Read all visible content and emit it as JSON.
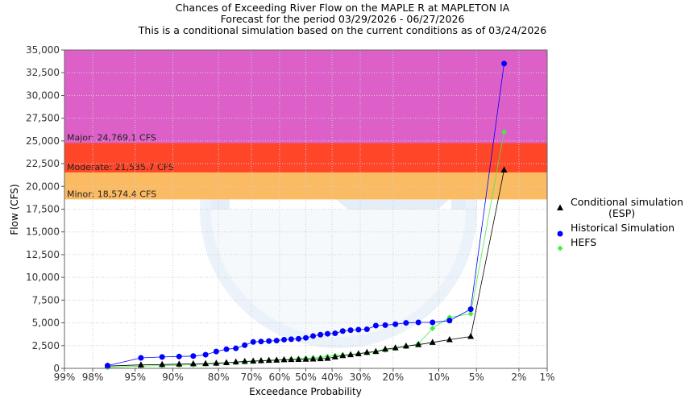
{
  "chart_data": {
    "type": "scatter",
    "title_lines": [
      "Chances of Exceeding River Flow on the MAPLE R at MAPLETON IA",
      "Forecast for the period 03/29/2026 - 06/27/2026",
      "This is a conditional simulation based on the current conditions as of 03/24/2026"
    ],
    "xlabel": "Exceedance Probability",
    "ylabel": "Flow (CFS)",
    "x_scale": "normal-probability",
    "x_ticks": [
      {
        "p": 99,
        "label": "99%"
      },
      {
        "p": 98,
        "label": "98%"
      },
      {
        "p": 95,
        "label": "95%"
      },
      {
        "p": 90,
        "label": "90%"
      },
      {
        "p": 80,
        "label": "80%"
      },
      {
        "p": 70,
        "label": "70%"
      },
      {
        "p": 60,
        "label": "60%"
      },
      {
        "p": 50,
        "label": "50%"
      },
      {
        "p": 40,
        "label": "40%"
      },
      {
        "p": 30,
        "label": "30%"
      },
      {
        "p": 20,
        "label": "20%"
      },
      {
        "p": 10,
        "label": "10%"
      },
      {
        "p": 5,
        "label": "5%"
      },
      {
        "p": 2,
        "label": "2%"
      },
      {
        "p": 1,
        "label": "1%"
      }
    ],
    "y_ticks": [
      {
        "v": 0,
        "label": "0"
      },
      {
        "v": 2500,
        "label": "2,500"
      },
      {
        "v": 5000,
        "label": "5,000"
      },
      {
        "v": 7500,
        "label": "7,500"
      },
      {
        "v": 10000,
        "label": "10,000"
      },
      {
        "v": 12500,
        "label": "12,500"
      },
      {
        "v": 15000,
        "label": "15,000"
      },
      {
        "v": 17500,
        "label": "17,500"
      },
      {
        "v": 20000,
        "label": "20,000"
      },
      {
        "v": 22500,
        "label": "22,500"
      },
      {
        "v": 25000,
        "label": "25,000"
      },
      {
        "v": 27500,
        "label": "27,500"
      },
      {
        "v": 30000,
        "label": "30,000"
      },
      {
        "v": 32500,
        "label": "32,500"
      },
      {
        "v": 35000,
        "label": "35,000"
      }
    ],
    "xlim": [
      99,
      1
    ],
    "ylim": [
      0,
      35000
    ],
    "grid": true,
    "legend_position": "right",
    "flood_bands": [
      {
        "name": "Major",
        "label": "Major: 24,769.1 CFS",
        "from": 24769.1,
        "to": 35000,
        "color": "#DD5FC8"
      },
      {
        "name": "Moderate",
        "label": "Moderate: 21,535.7 CFS",
        "from": 21535.7,
        "to": 24769.1,
        "color": "#FF4628"
      },
      {
        "name": "Minor",
        "label": "Minor: 18,574.4 CFS",
        "from": 18574.4,
        "to": 21535.7,
        "color": "#FBBB62"
      }
    ],
    "series": [
      {
        "name": "Conditional simulation (ESP)",
        "legend_lines": [
          "Conditional simulation",
          "(ESP)"
        ],
        "color": "#000000",
        "marker": "triangle",
        "x": [
          97.2,
          94.4,
          91.7,
          88.9,
          86.1,
          83.3,
          80.6,
          77.8,
          75.0,
          72.2,
          69.4,
          66.7,
          63.9,
          61.1,
          58.3,
          55.6,
          52.8,
          50.0,
          47.2,
          44.4,
          41.7,
          38.9,
          36.1,
          33.3,
          30.6,
          27.8,
          25.0,
          22.2,
          19.4,
          16.7,
          13.9,
          11.1,
          8.3,
          5.6,
          2.8
        ],
        "y": [
          250,
          380,
          420,
          460,
          500,
          520,
          560,
          620,
          700,
          760,
          800,
          840,
          870,
          900,
          940,
          960,
          980,
          1000,
          1020,
          1050,
          1100,
          1250,
          1400,
          1500,
          1600,
          1750,
          1850,
          2100,
          2250,
          2450,
          2600,
          2850,
          3150,
          3500,
          21800
        ]
      },
      {
        "name": "Historical Simulation",
        "color": "#0000FF",
        "marker": "circle",
        "x": [
          97.2,
          94.4,
          91.7,
          88.9,
          86.1,
          83.3,
          80.6,
          77.8,
          75.0,
          72.2,
          69.4,
          66.7,
          63.9,
          61.1,
          58.3,
          55.6,
          52.8,
          50.0,
          47.2,
          44.4,
          41.7,
          38.9,
          36.1,
          33.3,
          30.6,
          27.8,
          25.0,
          22.2,
          19.4,
          16.7,
          13.9,
          11.1,
          8.3,
          5.6,
          2.8
        ],
        "y": [
          300,
          1150,
          1250,
          1300,
          1350,
          1500,
          1850,
          2100,
          2200,
          2550,
          2900,
          2950,
          3000,
          3050,
          3150,
          3200,
          3250,
          3350,
          3550,
          3700,
          3800,
          3850,
          4100,
          4200,
          4250,
          4300,
          4700,
          4750,
          4850,
          5000,
          5050,
          5050,
          5250,
          6500,
          33500
        ]
      },
      {
        "name": "HEFS",
        "color": "#44EE44",
        "marker": "diamond",
        "x": [
          97.2,
          94.4,
          91.7,
          88.9,
          86.1,
          83.3,
          80.6,
          77.8,
          75.0,
          72.2,
          69.4,
          66.7,
          63.9,
          61.1,
          58.3,
          55.6,
          52.8,
          50.0,
          47.2,
          44.4,
          41.7,
          38.9,
          36.1,
          33.3,
          30.6,
          27.8,
          25.0,
          22.2,
          19.4,
          16.7,
          13.9,
          11.1,
          8.3,
          5.6,
          2.8
        ],
        "y": [
          100,
          250,
          300,
          350,
          400,
          450,
          500,
          600,
          650,
          700,
          750,
          800,
          850,
          900,
          950,
          1000,
          1050,
          1100,
          1150,
          1200,
          1300,
          1400,
          1450,
          1500,
          1600,
          1700,
          1800,
          2000,
          2200,
          2400,
          2700,
          4400,
          5600,
          6000,
          26000
        ]
      }
    ]
  }
}
